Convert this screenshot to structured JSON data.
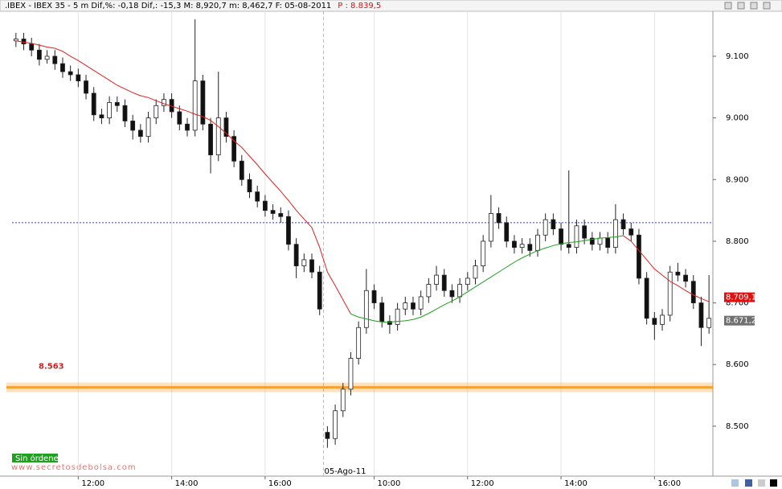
{
  "chart_data": {
    "type": "candlestick",
    "title": ".IBEX - IBEX 35 -  5 m Dif,%: -0,18 Dif,: -15,3 M: 8,920,7 m: 8,462,7 F: 05-08-2011",
    "last_price": "P : 8.839,5",
    "xlim": [
      -0.5,
      89.5
    ],
    "ylim": [
      8419,
      9173
    ],
    "yticks": [
      {
        "value": 8500,
        "label": "8.500"
      },
      {
        "value": 8600,
        "label": "8.600"
      },
      {
        "value": 8700,
        "label": "8.700"
      },
      {
        "value": 8800,
        "label": "8.800"
      },
      {
        "value": 8900,
        "label": "8.900"
      },
      {
        "value": 9000,
        "label": "9.000"
      },
      {
        "value": 9100,
        "label": "9.100"
      }
    ],
    "xticks": [
      {
        "value": 8,
        "label": "12:00"
      },
      {
        "value": 20,
        "label": "14:00"
      },
      {
        "value": 32,
        "label": "16:00"
      },
      {
        "value": 46,
        "label": "10:00"
      },
      {
        "value": 58,
        "label": "12:00"
      },
      {
        "value": 70,
        "label": "14:00"
      },
      {
        "value": 82,
        "label": "16:00"
      }
    ],
    "day_marker": {
      "value": 39.5,
      "label": "05-Ago-11"
    },
    "up_color": "#ffffff",
    "down_color": "#111111",
    "open": [
      9125,
      9128,
      9120,
      9110,
      9095,
      9100,
      9088,
      9075,
      9070,
      9060,
      9040,
      9005,
      9000,
      9025,
      9020,
      8995,
      8980,
      8970,
      9000,
      9020,
      9030,
      9010,
      8990,
      8980,
      9060,
      8990,
      8940,
      9000,
      8970,
      8930,
      8900,
      8880,
      8865,
      8850,
      8845,
      8840,
      8795,
      8760,
      8770,
      8750,
      8490,
      8480,
      8525,
      8560,
      8610,
      8660,
      8720,
      8700,
      8670,
      8665,
      8690,
      8700,
      8690,
      8710,
      8730,
      8745,
      8720,
      8710,
      8730,
      8740,
      8760,
      8800,
      8845,
      8830,
      8800,
      8790,
      8795,
      8785,
      8810,
      8835,
      8820,
      8795,
      8790,
      8825,
      8805,
      8795,
      8805,
      8790,
      8835,
      8820,
      8810,
      8740,
      8675,
      8665,
      8680,
      8750,
      8745,
      8735,
      8700,
      8660
    ],
    "high": [
      9138,
      9138,
      9130,
      9120,
      9110,
      9110,
      9098,
      9085,
      9080,
      9070,
      9050,
      9015,
      9035,
      9035,
      9030,
      9005,
      8990,
      9010,
      9030,
      9040,
      9040,
      9020,
      9000,
      9160,
      9070,
      9000,
      9075,
      9010,
      8980,
      8940,
      8910,
      8890,
      8875,
      8860,
      8855,
      8850,
      8805,
      8780,
      8780,
      8760,
      8500,
      8535,
      8570,
      8620,
      8670,
      8755,
      8730,
      8710,
      8680,
      8700,
      8710,
      8710,
      8720,
      8740,
      8760,
      8755,
      8730,
      8740,
      8750,
      8770,
      8810,
      8875,
      8855,
      8840,
      8810,
      8805,
      8805,
      8820,
      8845,
      8845,
      8830,
      8915,
      8835,
      8835,
      8815,
      8815,
      8815,
      8860,
      8845,
      8830,
      8820,
      8750,
      8685,
      8690,
      8760,
      8765,
      8755,
      8745,
      8710,
      8745
    ],
    "low": [
      9115,
      9110,
      9100,
      9085,
      9088,
      9078,
      9065,
      9060,
      9050,
      9030,
      8995,
      8990,
      8990,
      9010,
      8985,
      8965,
      8960,
      8960,
      8990,
      9010,
      9000,
      8980,
      8970,
      8970,
      8980,
      8910,
      8930,
      8960,
      8920,
      8890,
      8870,
      8855,
      8840,
      8835,
      8830,
      8785,
      8740,
      8750,
      8740,
      8680,
      8465,
      8470,
      8515,
      8550,
      8600,
      8650,
      8690,
      8660,
      8650,
      8655,
      8680,
      8680,
      8680,
      8700,
      8720,
      8710,
      8700,
      8700,
      8720,
      8730,
      8750,
      8790,
      8820,
      8790,
      8780,
      8780,
      8775,
      8775,
      8800,
      8810,
      8785,
      8780,
      8780,
      8795,
      8785,
      8785,
      8780,
      8780,
      8810,
      8800,
      8730,
      8665,
      8640,
      8655,
      8670,
      8735,
      8725,
      8690,
      8630,
      8650
    ],
    "close": [
      9128,
      9120,
      9110,
      9095,
      9100,
      9088,
      9075,
      9070,
      9060,
      9040,
      9005,
      9000,
      9025,
      9020,
      8995,
      8980,
      8970,
      9000,
      9020,
      9030,
      9010,
      8990,
      8980,
      9060,
      8990,
      8940,
      9000,
      8970,
      8930,
      8900,
      8880,
      8865,
      8850,
      8845,
      8840,
      8795,
      8760,
      8770,
      8750,
      8690,
      8480,
      8525,
      8560,
      8610,
      8660,
      8720,
      8700,
      8670,
      8665,
      8690,
      8700,
      8690,
      8710,
      8730,
      8745,
      8720,
      8710,
      8730,
      8740,
      8760,
      8800,
      8845,
      8830,
      8800,
      8790,
      8795,
      8785,
      8810,
      8835,
      8820,
      8795,
      8790,
      8825,
      8805,
      8795,
      8805,
      8790,
      8835,
      8820,
      8810,
      8740,
      8675,
      8665,
      8680,
      8750,
      8745,
      8735,
      8700,
      8660,
      8675
    ],
    "series": [
      {
        "color": "#e02020",
        "values": [
          9125,
          9123,
          9121,
          9118,
          9115,
          9113,
          9108,
          9100,
          9093,
          9085,
          9077,
          9069,
          9061,
          9053,
          9047,
          9041,
          9036,
          9033,
          9028,
          9023,
          9019,
          9015,
          9011,
          9006,
          9002,
          8996,
          8986,
          8975,
          8963,
          8952,
          8938,
          8924,
          8909,
          8895,
          8881,
          8866,
          8850,
          8836,
          8822,
          8790,
          8750,
          8728,
          8705,
          8682,
          null,
          null,
          null,
          null,
          null,
          null,
          null,
          null,
          null,
          null,
          null,
          null,
          null,
          null,
          null,
          null,
          null,
          null,
          null,
          null,
          null,
          null,
          null,
          null,
          null,
          null,
          null,
          null,
          null,
          null,
          null,
          null,
          null,
          null,
          8809,
          8800,
          8785,
          8770,
          8755,
          8745,
          8735,
          8728,
          8720,
          8713,
          8707,
          8702
        ]
      },
      {
        "color": "#20a020",
        "values": [
          null,
          null,
          null,
          null,
          null,
          null,
          null,
          null,
          null,
          null,
          null,
          null,
          null,
          null,
          null,
          null,
          null,
          null,
          null,
          null,
          null,
          null,
          null,
          null,
          null,
          null,
          null,
          null,
          null,
          null,
          null,
          null,
          null,
          null,
          null,
          null,
          null,
          null,
          null,
          null,
          null,
          null,
          null,
          8682,
          8677,
          8674,
          8671,
          8669,
          8669,
          8670,
          8671,
          8673,
          8677,
          8683,
          8690,
          8697,
          8703,
          8710,
          8718,
          8726,
          8734,
          8742,
          8750,
          8758,
          8766,
          8773,
          8779,
          8785,
          8789,
          8793,
          8796,
          8798,
          8799,
          8801,
          8803,
          8805,
          8806,
          8807,
          8809,
          null,
          null,
          null,
          null,
          null,
          null,
          null,
          null,
          null,
          null,
          null
        ]
      }
    ],
    "reference_line": {
      "value": 8830,
      "color": "#3040c0"
    },
    "support": {
      "value": 8563,
      "label": "8.563",
      "color": "#f5a030"
    },
    "price_labels": [
      {
        "value": 8709.1,
        "label": "8.709,1",
        "color": "#e01010"
      },
      {
        "value": 8671.2,
        "label": "8.671,2",
        "color": "#707070"
      }
    ],
    "status_label": "Sin órdenes",
    "watermark": "www.secretosdebolsa.com"
  }
}
